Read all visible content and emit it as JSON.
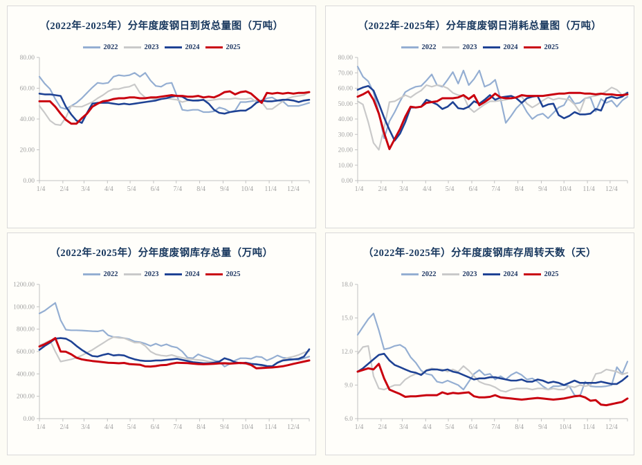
{
  "colors": {
    "s2022": "#94aed2",
    "s2023": "#c9c9c9",
    "s2024": "#1e4294",
    "s2025": "#c9000e",
    "title_text": "#16365d",
    "legend_text": "#1f3864",
    "axis_text": "#a3a3a3",
    "axis_line": "#c1c1c1",
    "panel_border": "#d9d9d9",
    "panel_bg": "#fffefa"
  },
  "chart_data": [
    {
      "type": "line",
      "title": "（2022年-2025年）分年度废钢日到货总量图（万吨）",
      "xlabel": "",
      "ylabel": "",
      "grid": false,
      "legend_position": "top-center",
      "x_labels": [
        "1/4",
        "2/4",
        "3/4",
        "4/4",
        "5/4",
        "6/4",
        "7/4",
        "8/4",
        "9/4",
        "10/4",
        "11/4",
        "12/4"
      ],
      "ylim": [
        0,
        80
      ],
      "ytick_values": [
        0,
        20,
        40,
        60,
        80
      ],
      "ytick_labels": [
        "0.00",
        "20.00",
        "40.00",
        "60.00",
        "80.00"
      ],
      "series": [
        {
          "name": "2022",
          "color_key": "s2022",
          "color": "#94aed2",
          "values": [
            67.5,
            63,
            59.5,
            53,
            47.5,
            46.5,
            48.5,
            50.5,
            53.5,
            57,
            60.5,
            63.5,
            63,
            63.5,
            67.5,
            68.5,
            68,
            68.5,
            70,
            67.5,
            70,
            65,
            61.5,
            61,
            63,
            63.5,
            55,
            46,
            45.5,
            46,
            46,
            44.5,
            44.5,
            45,
            47.5,
            46.5,
            44.5,
            45.5,
            51,
            51,
            51.5,
            52,
            51.5,
            53.5,
            54,
            52,
            51.5,
            48.5,
            48.5,
            48.5,
            49.5,
            50.5
          ]
        },
        {
          "name": "2023",
          "color_key": "s2023",
          "color": "#c9c9c9",
          "values": [
            48.5,
            44,
            39,
            36.5,
            36,
            41,
            48.5,
            48,
            48,
            49.5,
            51,
            53.5,
            55.5,
            58,
            59.5,
            59.5,
            60.5,
            61,
            62.5,
            57,
            54,
            53.5,
            53,
            53,
            53.5,
            53,
            52.5,
            51,
            52,
            52,
            52.5,
            52,
            52,
            52.5,
            53,
            53,
            53,
            53.5,
            53,
            53,
            53.5,
            51,
            51,
            46.5,
            46.5,
            49,
            51.5,
            53.5,
            54.5,
            55,
            55.5,
            57.5
          ]
        },
        {
          "name": "2024",
          "color_key": "s2024",
          "color": "#1e4294",
          "values": [
            56.5,
            56,
            56,
            55.5,
            55,
            48,
            43,
            39,
            37.5,
            44,
            50,
            50.5,
            50.5,
            50.5,
            50,
            49.5,
            50,
            49.5,
            50,
            50.5,
            51,
            51.5,
            52,
            53,
            53.5,
            54.5,
            55,
            54.5,
            52.5,
            52,
            52,
            52.5,
            50,
            46,
            44,
            43.5,
            44.5,
            45,
            45.5,
            45.5,
            47.5,
            50.5,
            52,
            51.5,
            51.5,
            52,
            52.5,
            52.5,
            52,
            51,
            52,
            52.5
          ]
        },
        {
          "name": "2025",
          "color_key": "s2025",
          "color": "#c9000e",
          "values": [
            51.5,
            51.5,
            51.5,
            48,
            43.5,
            39.5,
            37,
            37,
            40.5,
            43.5,
            48,
            50,
            51.5,
            52,
            53,
            53.5,
            53.5,
            54,
            54,
            53.5,
            53.5,
            54,
            54,
            54.5,
            55,
            55.5,
            55,
            55,
            54.5,
            54.5,
            55,
            54,
            54.5,
            54,
            55.5,
            57.5,
            58,
            56,
            57.5,
            58,
            56.5,
            53.5,
            50.5,
            57,
            56.5,
            57,
            56.5,
            57,
            56.5,
            57,
            57,
            57.5
          ]
        }
      ]
    },
    {
      "type": "line",
      "title": "（2022年-2025年）分年度废钢日消耗总量图（万吨）",
      "xlabel": "",
      "ylabel": "",
      "grid": false,
      "legend_position": "top-center",
      "x_labels": [
        "1/4",
        "2/4",
        "3/4",
        "4/4",
        "5/4",
        "6/4",
        "7/4",
        "8/4",
        "9/4",
        "10/4",
        "11/4",
        "12/4"
      ],
      "ylim": [
        0,
        80
      ],
      "ytick_values": [
        0,
        10,
        20,
        30,
        40,
        50,
        60,
        70,
        80
      ],
      "ytick_labels": [
        "0.00",
        "10.00",
        "20.00",
        "30.00",
        "40.00",
        "50.00",
        "60.00",
        "70.00",
        "80.00"
      ],
      "series": [
        {
          "name": "2022",
          "color_key": "s2022",
          "color": "#94aed2",
          "values": [
            74,
            67.5,
            64.5,
            57.5,
            44,
            27.5,
            38.5,
            44.5,
            51.5,
            57.5,
            59.5,
            61,
            61.5,
            65,
            69,
            62,
            61,
            65.5,
            70.5,
            63,
            71.5,
            62,
            66,
            71.5,
            61,
            62.5,
            65.5,
            53,
            37.5,
            42,
            47,
            50.5,
            44.5,
            40,
            42.5,
            43.5,
            40.5,
            44,
            47.5,
            49,
            55,
            50,
            50.5,
            53.5,
            54,
            45,
            53,
            50.5,
            52,
            48,
            52,
            54.5
          ]
        },
        {
          "name": "2023",
          "color_key": "s2023",
          "color": "#c9c9c9",
          "values": [
            51.5,
            49.5,
            38,
            24.5,
            20,
            34,
            51,
            51.5,
            53.5,
            55.5,
            54,
            56.5,
            58.5,
            62,
            61,
            62,
            61.5,
            60,
            57,
            55.5,
            55,
            47.5,
            44.5,
            47,
            49.5,
            51.5,
            51.5,
            52,
            52.5,
            53.5,
            54,
            54.5,
            50,
            47.5,
            49.5,
            52,
            54,
            52.5,
            53.5,
            53,
            52.5,
            49.5,
            44.5,
            53.5,
            54.5,
            55,
            56,
            58,
            60.5,
            59,
            55.5,
            57.5
          ]
        },
        {
          "name": "2024",
          "color_key": "s2024",
          "color": "#1e4294",
          "values": [
            59,
            60.5,
            61.5,
            58.5,
            50,
            41,
            33,
            26,
            30.5,
            38,
            47.5,
            47.5,
            48,
            52.5,
            51,
            49.5,
            46.5,
            48,
            51,
            47,
            46.5,
            48,
            51.5,
            50,
            52.5,
            55.5,
            52.5,
            54,
            54.5,
            55,
            53.5,
            50.5,
            53.5,
            54.5,
            55,
            48,
            49.5,
            50,
            42.5,
            40.5,
            42,
            44.5,
            43,
            43,
            43.5,
            46.5,
            45.5,
            53.5,
            54.5,
            53.5,
            54.5,
            57
          ]
        },
        {
          "name": "2025",
          "color_key": "s2025",
          "color": "#c9000e",
          "values": [
            54.5,
            56,
            58,
            52.5,
            43.5,
            31,
            20.5,
            27,
            33.5,
            41.5,
            48,
            47.5,
            48,
            50.5,
            51,
            51.5,
            53.5,
            53.5,
            53.5,
            54,
            55.5,
            53,
            55.5,
            49,
            51,
            53.5,
            56.5,
            54,
            53.5,
            53.5,
            54,
            55.5,
            55,
            55,
            55,
            55,
            55.5,
            56,
            56.5,
            56.5,
            57,
            57,
            57,
            56.5,
            56.5,
            56,
            56.5,
            56,
            56,
            55.5,
            55.5,
            56
          ]
        }
      ]
    },
    {
      "type": "line",
      "title": "（2022年-2025年）分年度废钢库存总量（万吨）",
      "xlabel": "",
      "ylabel": "",
      "grid": false,
      "legend_position": "top-center",
      "x_labels": [
        "1/4",
        "2/4",
        "3/4",
        "4/4",
        "5/4",
        "6/4",
        "7/4",
        "8/4",
        "9/4",
        "10/4",
        "11/4",
        "12/4"
      ],
      "ylim": [
        0,
        1200
      ],
      "ytick_values": [
        0,
        200,
        400,
        600,
        800,
        1000,
        1200
      ],
      "ytick_labels": [
        "0.00",
        "200.00",
        "400.00",
        "600.00",
        "800.00",
        "1000.00",
        "1200.00"
      ],
      "series": [
        {
          "name": "2022",
          "color_key": "s2022",
          "color": "#94aed2",
          "values": [
            940,
            965,
            1000,
            1035,
            880,
            795,
            790,
            790,
            788,
            785,
            782,
            780,
            790,
            745,
            730,
            728,
            720,
            710,
            690,
            685,
            670,
            650,
            670,
            650,
            665,
            645,
            635,
            600,
            545,
            540,
            575,
            555,
            540,
            520,
            510,
            465,
            490,
            520,
            540,
            540,
            535,
            555,
            550,
            520,
            540,
            565,
            545,
            540,
            530,
            525,
            540,
            555
          ]
        },
        {
          "name": "2023",
          "color_key": "s2023",
          "color": "#c9c9c9",
          "values": [
            655,
            675,
            700,
            600,
            510,
            520,
            530,
            545,
            565,
            590,
            615,
            645,
            675,
            705,
            730,
            722,
            720,
            700,
            680,
            680,
            650,
            600,
            575,
            565,
            560,
            570,
            555,
            545,
            535,
            530,
            525,
            520,
            510,
            505,
            500,
            500,
            500,
            505,
            495,
            490,
            485,
            490,
            470,
            465,
            470,
            505,
            525,
            545,
            555,
            570,
            590,
            605
          ]
        },
        {
          "name": "2024",
          "color_key": "s2024",
          "color": "#1e4294",
          "values": [
            615,
            650,
            680,
            715,
            720,
            715,
            690,
            650,
            615,
            585,
            560,
            555,
            570,
            580,
            565,
            570,
            565,
            545,
            530,
            520,
            515,
            515,
            520,
            520,
            525,
            530,
            535,
            525,
            515,
            505,
            500,
            495,
            495,
            500,
            510,
            540,
            525,
            505,
            495,
            500,
            490,
            485,
            480,
            470,
            468,
            500,
            520,
            525,
            530,
            535,
            555,
            620
          ]
        },
        {
          "name": "2025",
          "color_key": "s2025",
          "color": "#c9000e",
          "values": [
            645,
            665,
            690,
            720,
            600,
            598,
            575,
            545,
            530,
            522,
            515,
            510,
            505,
            500,
            498,
            495,
            498,
            488,
            485,
            482,
            467,
            465,
            470,
            478,
            480,
            492,
            500,
            498,
            497,
            492,
            488,
            486,
            488,
            490,
            494,
            495,
            492,
            495,
            498,
            495,
            480,
            450,
            452,
            455,
            458,
            462,
            468,
            478,
            490,
            500,
            510,
            520
          ]
        }
      ]
    },
    {
      "type": "line",
      "title": "（2022年-2025年）分年度废钢库存周转天数（天）",
      "xlabel": "",
      "ylabel": "",
      "grid": false,
      "legend_position": "top-center",
      "x_labels": [
        "1/4",
        "2/4",
        "3/4",
        "4/4",
        "5/4",
        "6/4",
        "7/4",
        "8/4",
        "9/4",
        "10/4",
        "11/4",
        "12/4"
      ],
      "ylim": [
        6,
        18
      ],
      "ytick_values": [
        6,
        9,
        12,
        15,
        18
      ],
      "ytick_labels": [
        "6.0",
        "9.0",
        "12.0",
        "15.0",
        "18.0"
      ],
      "series": [
        {
          "name": "2022",
          "color_key": "s2022",
          "color": "#94aed2",
          "values": [
            13.5,
            14.2,
            14.9,
            15.4,
            13.9,
            12.2,
            12.3,
            12.5,
            12.6,
            12.3,
            11.5,
            11.0,
            10.3,
            10.0,
            9.9,
            9.3,
            9.2,
            9.4,
            9.2,
            9.0,
            8.6,
            9.3,
            10.0,
            10.35,
            9.9,
            10.0,
            9.5,
            9.8,
            9.5,
            9.9,
            10.15,
            9.9,
            9.5,
            9.6,
            9.3,
            8.9,
            8.6,
            8.9,
            8.9,
            9.0,
            8.9,
            8.1,
            8.0,
            9.3,
            8.9,
            8.85,
            8.85,
            8.9,
            9.0,
            10.6,
            10.0,
            11.1
          ]
        },
        {
          "name": "2023",
          "color_key": "s2023",
          "color": "#c9c9c9",
          "values": [
            11.8,
            12.4,
            12.5,
            9.8,
            8.7,
            8.6,
            8.8,
            9.0,
            9.0,
            9.5,
            9.8,
            10.0,
            10.0,
            10.35,
            10.5,
            10.4,
            10.4,
            10.2,
            10.4,
            10.2,
            10.7,
            10.3,
            9.8,
            9.3,
            9.1,
            9.0,
            8.8,
            8.5,
            8.4,
            8.6,
            8.7,
            8.7,
            8.7,
            8.6,
            8.7,
            8.7,
            8.6,
            8.7,
            8.6,
            8.6,
            8.9,
            8.8,
            9.0,
            8.9,
            9.0,
            10.0,
            10.1,
            10.4,
            10.3,
            10.2,
            9.95,
            10.1
          ]
        },
        {
          "name": "2024",
          "color_key": "s2024",
          "color": "#1e4294",
          "values": [
            10.2,
            10.5,
            10.9,
            11.3,
            11.7,
            11.8,
            11.2,
            10.8,
            10.6,
            10.4,
            10.2,
            10.1,
            9.9,
            10.3,
            10.4,
            10.4,
            10.3,
            10.4,
            10.2,
            10.1,
            9.9,
            9.7,
            9.5,
            9.6,
            9.6,
            9.7,
            9.7,
            9.6,
            9.5,
            9.4,
            9.4,
            9.5,
            9.3,
            9.3,
            9.5,
            9.4,
            9.2,
            9.3,
            9.2,
            9.0,
            9.2,
            9.4,
            9.2,
            9.2,
            9.2,
            9.2,
            9.3,
            9.2,
            9.1,
            9.1,
            9.4,
            9.8
          ]
        },
        {
          "name": "2025",
          "color_key": "s2025",
          "color": "#c9000e",
          "values": [
            10.2,
            10.35,
            10.5,
            10.4,
            10.9,
            9.6,
            8.6,
            8.4,
            8.2,
            7.95,
            8.0,
            8.0,
            8.05,
            8.1,
            8.1,
            8.1,
            8.35,
            8.2,
            8.3,
            8.25,
            8.3,
            8.35,
            8.0,
            7.9,
            7.9,
            7.95,
            8.1,
            7.9,
            7.85,
            7.8,
            7.75,
            7.7,
            7.75,
            7.8,
            7.85,
            7.8,
            7.75,
            7.7,
            7.75,
            7.8,
            7.9,
            8.0,
            8.05,
            7.9,
            7.6,
            7.65,
            7.25,
            7.2,
            7.3,
            7.4,
            7.5,
            7.8
          ]
        }
      ]
    }
  ]
}
